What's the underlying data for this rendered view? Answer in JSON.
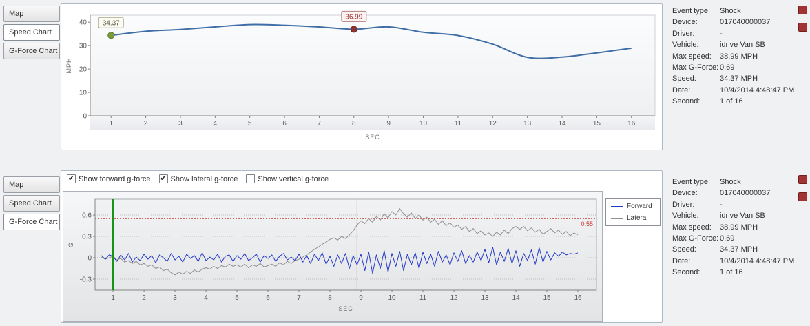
{
  "tabs": [
    {
      "label": "Map"
    },
    {
      "label": "Speed Chart"
    },
    {
      "label": "G-Force Chart"
    }
  ],
  "top_panel": {
    "selected_tab": "Speed Chart"
  },
  "bottom_panel": {
    "selected_tab": "G-Force Chart",
    "checkboxes": [
      {
        "label": "Show forward g-force",
        "checked": true
      },
      {
        "label": "Show lateral g-force",
        "checked": true
      },
      {
        "label": "Show vertical g-force",
        "checked": false
      }
    ],
    "legend": [
      {
        "label": "Forward",
        "color": "#2138c8"
      },
      {
        "label": "Lateral",
        "color": "#8f8f8f"
      }
    ]
  },
  "details": {
    "rows": [
      {
        "label": "Event type:",
        "value": "Shock"
      },
      {
        "label": "Device:",
        "value": "017040000037"
      },
      {
        "label": "Driver:",
        "value": "-"
      },
      {
        "label": "Vehicle:",
        "value": "idrive Van SB"
      },
      {
        "label": "Max speed:",
        "value": "38.99 MPH"
      },
      {
        "label": "Max G-Force:",
        "value": "0.69"
      },
      {
        "label": "Speed:",
        "value": "34.37 MPH"
      },
      {
        "label": "Date:",
        "value": "10/4/2014 4:48:47 PM"
      },
      {
        "label": "Second:",
        "value": "1 of 16"
      }
    ]
  },
  "colors": {
    "red_icon": "#a23333",
    "speed_line": "#3e6ea5",
    "forward_line": "#2138c8",
    "lateral_line": "#8f8f8f",
    "current_second_line": "#169416",
    "event_line": "#cc2222",
    "threshold_line": "#cc3333"
  },
  "chart_data": [
    {
      "type": "line",
      "title": "Speed Chart",
      "xlabel": "SEC",
      "ylabel": "MPH",
      "ylim": [
        0,
        43
      ],
      "yticks": [
        0,
        10,
        20,
        30,
        40
      ],
      "xticks": [
        1,
        2,
        3,
        4,
        5,
        6,
        7,
        8,
        9,
        10,
        11,
        12,
        13,
        14,
        15,
        16
      ],
      "x": [
        1,
        2,
        3,
        4,
        5,
        6,
        7,
        8,
        9,
        10,
        11,
        12,
        13,
        14,
        15,
        16
      ],
      "series": [
        {
          "name": "Speed",
          "color": "#3e6ea5",
          "width": 2,
          "values": [
            34.37,
            36.1,
            36.9,
            38.0,
            38.99,
            38.7,
            38.0,
            36.99,
            38.0,
            35.7,
            34.3,
            30.6,
            25.0,
            25.1,
            26.9,
            28.9
          ]
        }
      ],
      "markers": [
        {
          "name": "start-marker",
          "x": 1,
          "y": 34.37,
          "label": "34.37",
          "color": "#7d9b3a",
          "border": "#5d7a22",
          "text_color": "#55553f",
          "box_fill": "#fcfcf4",
          "box_border": "#a8aa84"
        },
        {
          "name": "shock-event-marker",
          "x": 8,
          "y": 36.99,
          "label": "36.99",
          "color": "#8e3432",
          "border": "#6f1f1e",
          "text_color": "#97312f",
          "box_fill": "#fbf3f2",
          "box_border": "#b5807f"
        }
      ]
    },
    {
      "type": "line",
      "title": "G-Force Chart",
      "xlabel": "SEC",
      "ylabel": "G",
      "ylim": [
        -0.455,
        0.823
      ],
      "yticks": [
        -0.3,
        0,
        0.3,
        0.6
      ],
      "xticks": [
        1,
        2,
        3,
        4,
        5,
        6,
        7,
        8,
        9,
        10,
        11,
        12,
        13,
        14,
        15,
        16
      ],
      "x_start": 0.625,
      "x_step": 0.125,
      "threshold": {
        "y": 0.55,
        "label": "0.55",
        "color": "#cc3333"
      },
      "vlines": [
        {
          "name": "current-second-line",
          "x": 1,
          "color": "#169416",
          "width": 3
        },
        {
          "name": "event-second-line",
          "x": 8.875,
          "color": "#cc2222",
          "width": 1
        }
      ],
      "series": [
        {
          "name": "Lateral",
          "color": "#8f8f8f",
          "width": 1,
          "values": [
            0.01,
            -0.02,
            0.0,
            0.02,
            -0.03,
            -0.01,
            -0.06,
            -0.04,
            -0.08,
            -0.05,
            -0.1,
            -0.08,
            -0.12,
            -0.1,
            -0.15,
            -0.13,
            -0.18,
            -0.16,
            -0.21,
            -0.24,
            -0.2,
            -0.23,
            -0.19,
            -0.22,
            -0.17,
            -0.2,
            -0.16,
            -0.14,
            -0.16,
            -0.12,
            -0.15,
            -0.11,
            -0.13,
            -0.09,
            -0.12,
            -0.1,
            -0.13,
            -0.09,
            -0.14,
            -0.1,
            -0.12,
            -0.08,
            -0.13,
            -0.11,
            -0.09,
            -0.12,
            -0.07,
            -0.1,
            -0.05,
            -0.08,
            -0.04,
            -0.02,
            0.01,
            0.04,
            0.08,
            0.12,
            0.15,
            0.19,
            0.22,
            0.26,
            0.28,
            0.25,
            0.3,
            0.27,
            0.32,
            0.38,
            0.46,
            0.52,
            0.48,
            0.55,
            0.5,
            0.58,
            0.53,
            0.62,
            0.56,
            0.65,
            0.6,
            0.69,
            0.62,
            0.57,
            0.63,
            0.55,
            0.6,
            0.53,
            0.57,
            0.5,
            0.54,
            0.47,
            0.52,
            0.45,
            0.49,
            0.43,
            0.46,
            0.4,
            0.44,
            0.37,
            0.41,
            0.34,
            0.38,
            0.32,
            0.35,
            0.3,
            0.36,
            0.32,
            0.39,
            0.34,
            0.41,
            0.44,
            0.4,
            0.44,
            0.38,
            0.42,
            0.36,
            0.4,
            0.33,
            0.37,
            0.41,
            0.35,
            0.39,
            0.33,
            0.37,
            0.31,
            0.35,
            0.32
          ]
        },
        {
          "name": "Forward",
          "color": "#2138c8",
          "width": 1,
          "values": [
            0.03,
            -0.02,
            0.04,
            0.02,
            -0.05,
            0.04,
            -0.03,
            0.06,
            -0.06,
            0.01,
            -0.04,
            0.05,
            -0.02,
            0.03,
            -0.07,
            0.04,
            0.0,
            -0.05,
            0.06,
            -0.03,
            0.02,
            -0.06,
            0.05,
            -0.01,
            0.03,
            -0.05,
            0.07,
            -0.04,
            0.01,
            -0.03,
            0.05,
            -0.06,
            0.02,
            0.04,
            -0.05,
            0.03,
            -0.02,
            0.06,
            -0.04,
            0.0,
            0.05,
            -0.06,
            0.03,
            -0.01,
            0.04,
            -0.05,
            0.02,
            0.06,
            -0.03,
            0.01,
            -0.04,
            0.05,
            -0.06,
            0.03,
            -0.08,
            0.05,
            -0.04,
            0.07,
            -0.09,
            0.02,
            -0.12,
            0.04,
            -0.08,
            0.06,
            -0.15,
            0.03,
            -0.1,
            0.05,
            -0.18,
            0.08,
            -0.22,
            0.04,
            -0.15,
            0.1,
            -0.2,
            0.06,
            -0.12,
            0.09,
            -0.18,
            0.05,
            -0.1,
            0.07,
            -0.15,
            0.08,
            -0.08,
            0.05,
            -0.12,
            0.09,
            -0.06,
            0.04,
            -0.1,
            0.07,
            -0.05,
            0.1,
            -0.08,
            0.03,
            -0.06,
            0.08,
            -0.04,
            0.12,
            -0.07,
            0.15,
            -0.1,
            0.08,
            -0.05,
            0.13,
            -0.08,
            0.1,
            -0.12,
            0.06,
            -0.04,
            0.11,
            -0.09,
            0.14,
            -0.06,
            0.09,
            -0.03,
            0.07,
            0.02,
            0.08,
            0.04,
            0.06,
            0.05,
            0.07
          ]
        }
      ],
      "legend": [
        "Forward",
        "Lateral"
      ]
    }
  ]
}
